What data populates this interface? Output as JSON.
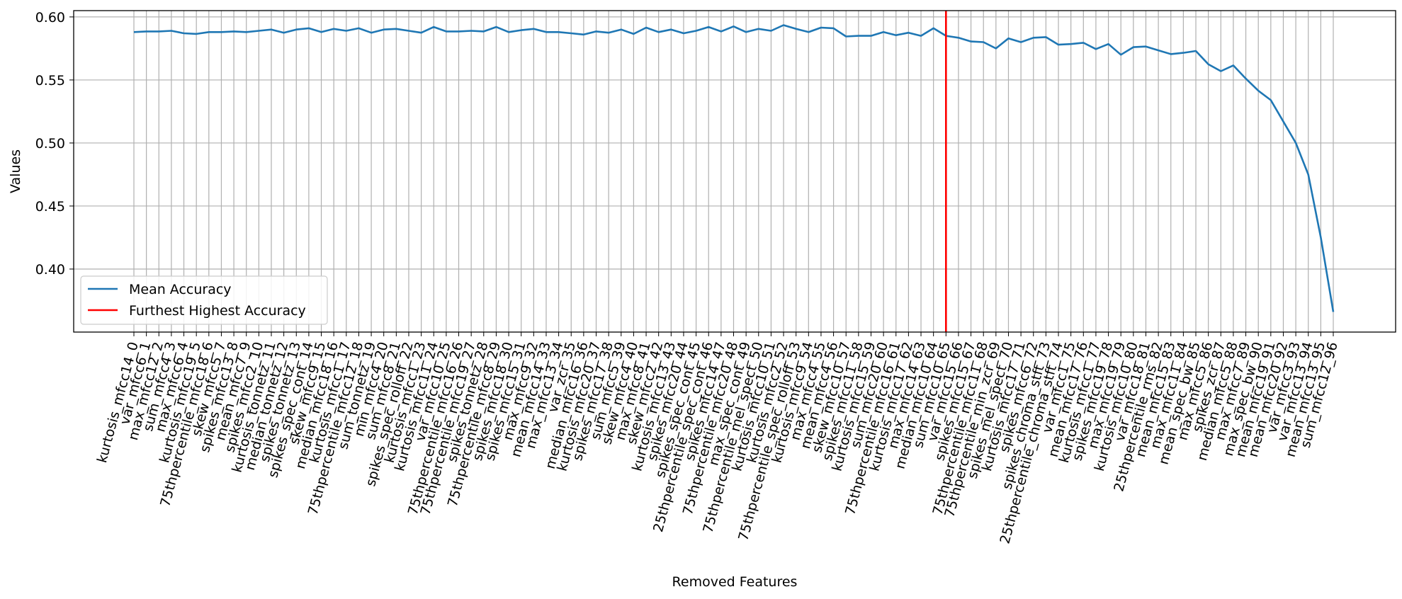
{
  "chart_data": {
    "type": "line",
    "xlabel": "Removed Features",
    "ylabel": "Values",
    "ylim": [
      0.35,
      0.605
    ],
    "yticks": [
      "0.40",
      "0.45",
      "0.50",
      "0.55",
      "0.60"
    ],
    "grid": true,
    "legend_position": "lower-left",
    "series": [
      {
        "name": "Mean Accuracy",
        "color": "#1f77b4",
        "values": [
          0.588,
          0.5885,
          0.5885,
          0.589,
          0.587,
          0.5865,
          0.588,
          0.588,
          0.5885,
          0.588,
          0.589,
          0.59,
          0.5875,
          0.59,
          0.591,
          0.588,
          0.5905,
          0.589,
          0.591,
          0.5875,
          0.59,
          0.5905,
          0.589,
          0.5875,
          0.592,
          0.5885,
          0.5885,
          0.589,
          0.5885,
          0.592,
          0.588,
          0.5895,
          0.5905,
          0.588,
          0.588,
          0.587,
          0.586,
          0.5885,
          0.5875,
          0.59,
          0.5865,
          0.5915,
          0.588,
          0.59,
          0.587,
          0.589,
          0.592,
          0.5885,
          0.5925,
          0.588,
          0.5905,
          0.589,
          0.5935,
          0.5905,
          0.588,
          0.5915,
          0.591,
          0.5845,
          0.585,
          0.585,
          0.588,
          0.5855,
          0.5875,
          0.585,
          0.591,
          0.585,
          0.5835,
          0.5805,
          0.58,
          0.575,
          0.583,
          0.58,
          0.5835,
          0.584,
          0.578,
          0.5785,
          0.5795,
          0.5745,
          0.5785,
          0.57,
          0.576,
          0.5765,
          0.5735,
          0.5705,
          0.5715,
          0.573,
          0.5625,
          0.557,
          0.5615,
          0.551,
          0.5415,
          0.534,
          0.517,
          0.5,
          0.475,
          0.425,
          0.366
        ]
      },
      {
        "name": "Furthest Highest Accuracy",
        "color": "#ff0000",
        "x": 65
      }
    ],
    "categories": [
      "kurtosis_mfcc14_0",
      "var_mfcc6_1",
      "max_mfcc12_2",
      "sum_mfcc4_3",
      "max_mfcc6_4",
      "kurtosis_mfcc19_5",
      "75thpercentile_mfcc18_6",
      "skew_mfcc5_7",
      "spikes_mfcc13_8",
      "mean_mfcc7_9",
      "spikes_mfcc2_10",
      "kurtosis_tonnetz_11",
      "median_tonnetz_12",
      "spikes_tonnetz_13",
      "spikes_spec_cont_14",
      "skew_mfcc9_15",
      "median_mfcc18_16",
      "kurtosis_mfcc1_17",
      "75thpercentile_mfcc12_18",
      "sum_tonnetz_19",
      "min_mfcc4_20",
      "sum_mfcc8_21",
      "spikes_spec_rolloff_22",
      "kurtosis_mfcc1_23",
      "kurtosis_mfcc11_24",
      "var_mfcc10_25",
      "75thpercentile_mfcc16_26",
      "75thpercentile_mfcc19_27",
      "spikes_tonnetz_28",
      "75thpercentile_mfcc8_29",
      "spikes_mfcc18_30",
      "spikes_mfcc15_31",
      "max_mfcc9_32",
      "mean_mfcc14_33",
      "max_mfcc13_34",
      "var_zcr_35",
      "median_mfcc16_36",
      "kurtosis_mfcc20_37",
      "spikes_mfcc17_38",
      "sum_mfcc5_39",
      "skew_mfcc4_40",
      "max_mfcc8_41",
      "skew_mfcc2_42",
      "kurtosis_mfcc13_43",
      "spikes_mfcc20_44",
      "spikes_spec_cont_45",
      "25thpercentile_spec_cont_46",
      "spikes_mfcc14_47",
      "75thpercentile_mfcc20_48",
      "max_spec_cont_49",
      "75thpercentile_mel_spect_50",
      "kurtosis_mfcc10_51",
      "kurtosis_mfcc2_52",
      "75thpercentile_spec_rolloff_53",
      "kurtosis_mfcc9_54",
      "max_mfcc4_55",
      "mean_mfcc4_56",
      "skew_mfcc10_57",
      "spikes_mfcc11_58",
      "kurtosis_mfcc15_59",
      "sum_mfcc20_60",
      "75thpercentile_mfcc16_61",
      "kurtosis_mfcc17_62",
      "max_mfcc14_63",
      "median_mfcc10_64",
      "sum_mfcc10_65",
      "var_mfcc15_66",
      "spikes_mfcc15_67",
      "75thpercentile_mfcc11_68",
      "75thpercentile_min_zcr_69",
      "spikes_mel_spect_70",
      "kurtosis_mfcc17_71",
      "spikes_mfcc6_72",
      "spikes_chroma_stft_73",
      "25thpercentile_chroma_stft_74",
      "var_mfcc1_75",
      "mean_mfcc17_76",
      "kurtosis_mfcc1_77",
      "spikes_mfcc19_78",
      "max_mfcc19_79",
      "kurtosis_mfcc10_80",
      "var_mfcc18_81",
      "25thpercentile_rms_82",
      "mean_mfcc15_83",
      "max_mfcc11_84",
      "mean_spec_bw_85",
      "max_mfcc5_86",
      "spikes_zcr_87",
      "median_mfcc5_88",
      "max_mfcc7_89",
      "max_spec_bw_90",
      "mean_mfcc19_91",
      "mean_mfcc20_92",
      "var_mfcc3_93",
      "var_mfcc13_94",
      "mean_mfcc13_95",
      "sum_mfcc12_96"
    ]
  }
}
